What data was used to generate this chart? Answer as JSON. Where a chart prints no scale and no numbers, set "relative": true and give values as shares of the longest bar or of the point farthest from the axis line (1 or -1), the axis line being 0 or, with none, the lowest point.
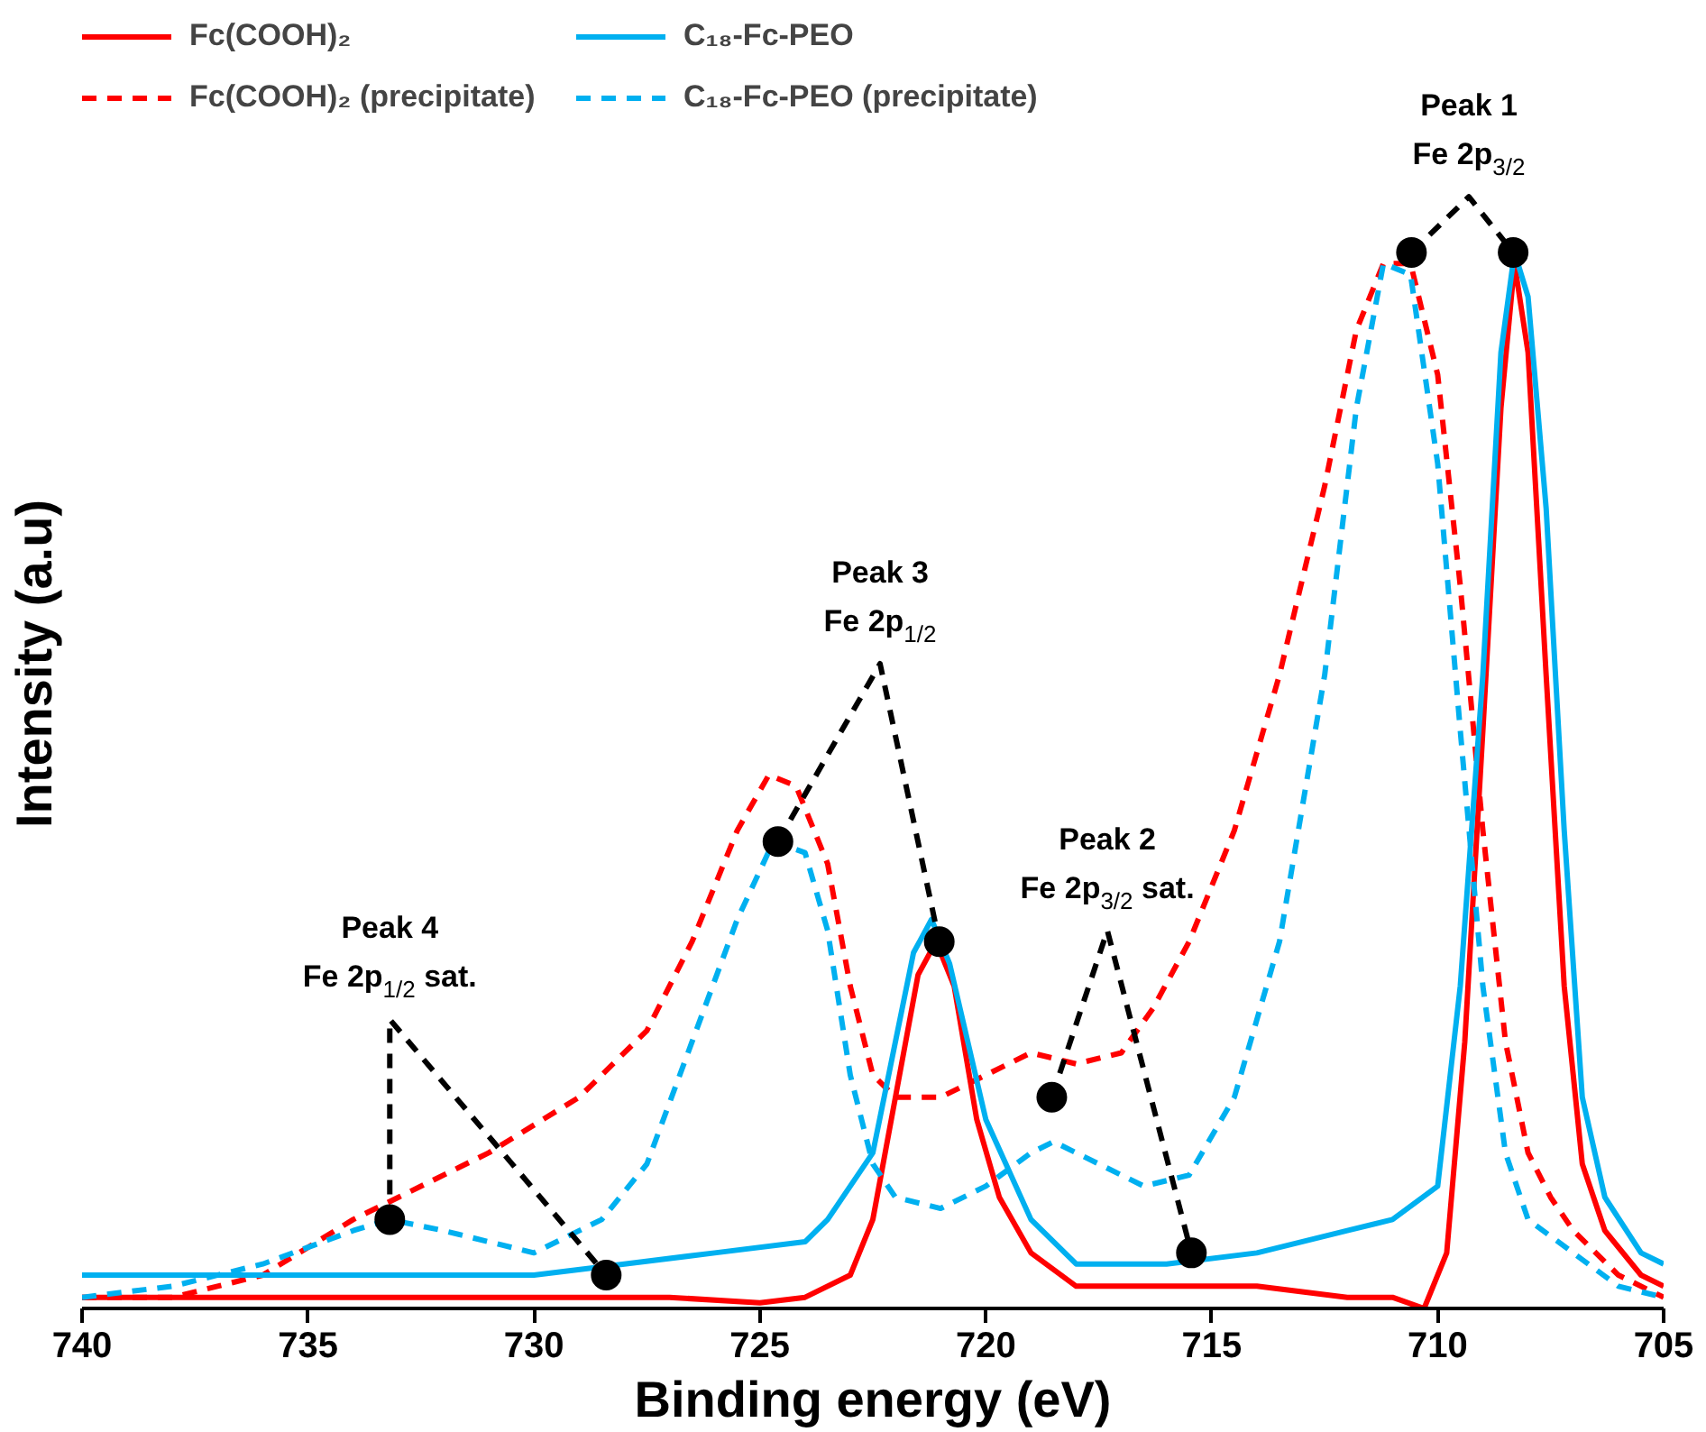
{
  "chart_data": {
    "type": "line",
    "relative": true,
    "xlabel": "Binding energy (eV)",
    "ylabel": "Intensity (a.u)",
    "xlim": [
      740,
      705
    ],
    "xticks": [
      740,
      735,
      730,
      725,
      720,
      715,
      710,
      705
    ],
    "grid": false,
    "legend": "top left",
    "series": [
      {
        "name": "Fc(COOH)₂",
        "color": "#ff0000",
        "line_style": "solid",
        "x": [
          740,
          735,
          730,
          727,
          725,
          724,
          723,
          722.5,
          722,
          721.5,
          721.1,
          720.7,
          720.2,
          719.7,
          719,
          718,
          716,
          714,
          712,
          711,
          710.3,
          709.8,
          709.4,
          709,
          708.6,
          708.3,
          708,
          707.6,
          707.2,
          706.8,
          706.3,
          705.5,
          705
        ],
        "values": [
          0.01,
          0.01,
          0.01,
          0.01,
          0.005,
          0.01,
          0.03,
          0.08,
          0.19,
          0.3,
          0.33,
          0.29,
          0.17,
          0.1,
          0.05,
          0.02,
          0.02,
          0.02,
          0.01,
          0.01,
          0.0,
          0.05,
          0.24,
          0.52,
          0.81,
          0.94,
          0.86,
          0.57,
          0.29,
          0.13,
          0.07,
          0.03,
          0.02
        ]
      },
      {
        "name": "Fc(COOH)₂ (precipitate)",
        "color": "#ff0000",
        "line_style": "dashed",
        "x": [
          740,
          738,
          736,
          734,
          733,
          731,
          729,
          727.5,
          726.5,
          725.5,
          724.8,
          724.2,
          723.5,
          723,
          722.5,
          722,
          721,
          720,
          719,
          718,
          717,
          716.3,
          715.5,
          714.5,
          713.5,
          712.5,
          711.8,
          711.2,
          710.6,
          710,
          709.5,
          709,
          708.5,
          708,
          707.5,
          707,
          706,
          705
        ],
        "values": [
          0.01,
          0.01,
          0.03,
          0.08,
          0.1,
          0.14,
          0.19,
          0.25,
          0.33,
          0.43,
          0.48,
          0.47,
          0.4,
          0.29,
          0.21,
          0.19,
          0.19,
          0.21,
          0.23,
          0.22,
          0.23,
          0.27,
          0.33,
          0.43,
          0.57,
          0.74,
          0.88,
          0.94,
          0.94,
          0.84,
          0.65,
          0.43,
          0.24,
          0.14,
          0.1,
          0.07,
          0.03,
          0.01
        ]
      },
      {
        "name": "C₁₈-Fc-PEO",
        "color": "#00b0f0",
        "line_style": "solid",
        "x": [
          740,
          737,
          734,
          730,
          728,
          726,
          724,
          723.5,
          722.5,
          722,
          721.6,
          721.2,
          720.8,
          720,
          719,
          718,
          716,
          714,
          712,
          711,
          710,
          709.5,
          709,
          708.6,
          708.3,
          708,
          707.6,
          707.2,
          706.8,
          706.3,
          705.5,
          705
        ],
        "values": [
          0.03,
          0.03,
          0.03,
          0.03,
          0.04,
          0.05,
          0.06,
          0.08,
          0.14,
          0.24,
          0.32,
          0.35,
          0.31,
          0.17,
          0.08,
          0.04,
          0.04,
          0.05,
          0.07,
          0.08,
          0.11,
          0.29,
          0.57,
          0.86,
          0.95,
          0.91,
          0.72,
          0.43,
          0.19,
          0.1,
          0.05,
          0.04
        ]
      },
      {
        "name": "C₁₈-Fc-PEO (precipitate)",
        "color": "#00b0f0",
        "line_style": "dashed",
        "x": [
          740,
          738,
          736,
          734,
          733.2,
          732,
          730,
          728.5,
          727.5,
          726.5,
          725.5,
          724.7,
          724,
          723.5,
          723,
          722.5,
          722,
          721,
          720,
          719,
          718.5,
          717.5,
          716.5,
          715.5,
          714.5,
          713.5,
          712.5,
          711.8,
          711.2,
          710.6,
          710,
          709.5,
          709,
          708.5,
          708,
          707,
          706,
          705
        ],
        "values": [
          0.01,
          0.02,
          0.04,
          0.07,
          0.08,
          0.07,
          0.05,
          0.08,
          0.13,
          0.24,
          0.35,
          0.42,
          0.41,
          0.34,
          0.21,
          0.13,
          0.1,
          0.09,
          0.11,
          0.14,
          0.15,
          0.13,
          0.11,
          0.12,
          0.19,
          0.33,
          0.57,
          0.81,
          0.94,
          0.93,
          0.76,
          0.52,
          0.29,
          0.14,
          0.08,
          0.05,
          0.02,
          0.01
        ]
      },
      {
        "type": "line",
        "color": "#000000",
        "line_style": "dashed",
        "x": [
          710.58,
          709.31,
          708.33
        ],
        "values": [
          0.95,
          1.0,
          0.95
        ]
      },
      {
        "type": "line",
        "color": "#000000",
        "line_style": "dashed",
        "x": [
          724.6,
          722.34,
          721.03
        ],
        "values": [
          0.42,
          0.58,
          0.33
        ]
      },
      {
        "type": "line",
        "color": "#000000",
        "line_style": "dashed",
        "x": [
          718.54,
          717.31,
          715.45
        ],
        "values": [
          0.19,
          0.34,
          0.05
        ]
      },
      {
        "type": "line",
        "color": "#000000",
        "line_style": "dashed",
        "x": [
          733.19,
          733.19,
          728.4
        ],
        "values": [
          0.08,
          0.26,
          0.03
        ]
      },
      {
        "type": "scatter",
        "color": "#000000",
        "marker": "circle",
        "x": [
          710.58,
          708.33,
          724.6,
          721.03,
          718.54,
          715.45,
          733.19,
          728.4
        ],
        "values": [
          0.95,
          0.95,
          0.42,
          0.33,
          0.19,
          0.05,
          0.08,
          0.03
        ]
      }
    ],
    "annotations": [
      "Peak 1\nFe 2p$_{3/2}$",
      "Peak 3\nFe 2p$_{1/2}$",
      "Peak 2\nFe 2p$_{3/2}$ sat.",
      "Peak 4\nFe 2p$_{1/2}$ sat."
    ]
  }
}
